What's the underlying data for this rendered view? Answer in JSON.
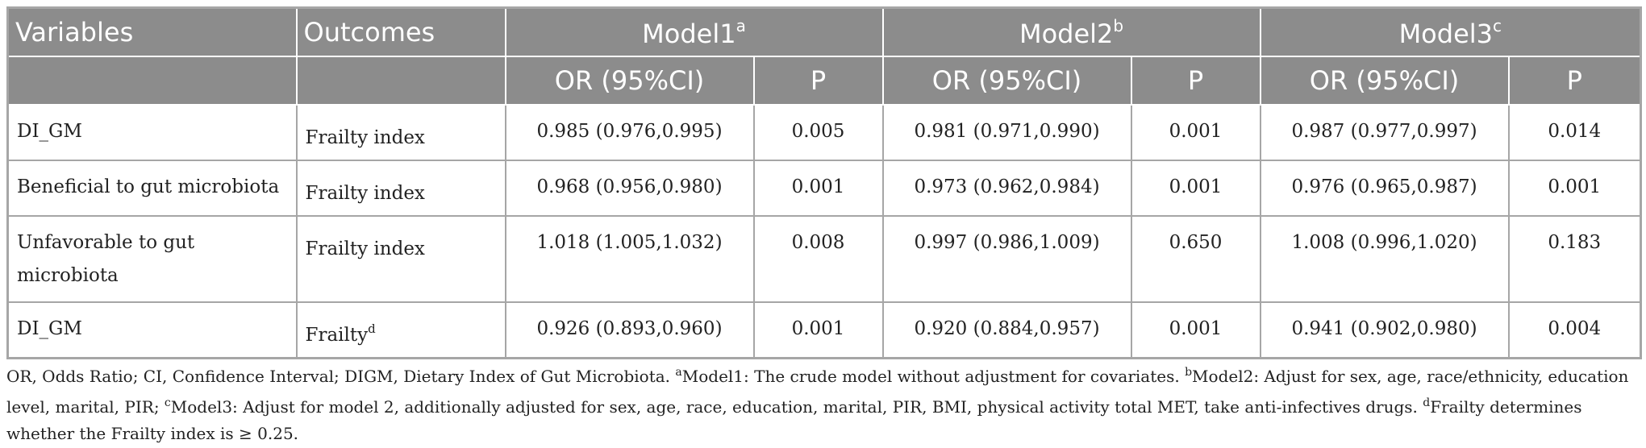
{
  "table": {
    "header_row1": {
      "variables": "Variables",
      "outcomes": "Outcomes",
      "model1": "Model1",
      "model1_sup": "a",
      "model2": "Model2",
      "model2_sup": "b",
      "model3": "Model3",
      "model3_sup": "c"
    },
    "header_row2": {
      "or1": "OR (95%CI)",
      "p1": "P",
      "or2": "OR (95%CI)",
      "p2": "P",
      "or3": "OR (95%CI)",
      "p3": "P"
    },
    "rows": [
      {
        "variable": "DI_GM",
        "outcome": "Frailty index",
        "outcome_sup": "",
        "m1_or": "0.985 (0.976,0.995)",
        "m1_p": "0.005",
        "m2_or": "0.981 (0.971,0.990)",
        "m2_p": "0.001",
        "m3_or": "0.987 (0.977,0.997)",
        "m3_p": "0.014"
      },
      {
        "variable": "Beneficial to gut microbiota",
        "outcome": "Frailty index",
        "outcome_sup": "",
        "m1_or": "0.968 (0.956,0.980)",
        "m1_p": "0.001",
        "m2_or": "0.973 (0.962,0.984)",
        "m2_p": "0.001",
        "m3_or": "0.976 (0.965,0.987)",
        "m3_p": "0.001"
      },
      {
        "variable": "Unfavorable to gut microbiota",
        "outcome": "Frailty index",
        "outcome_sup": "",
        "m1_or": "1.018 (1.005,1.032)",
        "m1_p": "0.008",
        "m2_or": "0.997 (0.986,1.009)",
        "m2_p": "0.650",
        "m3_or": "1.008 (0.996,1.020)",
        "m3_p": "0.183"
      },
      {
        "variable": "DI_GM",
        "outcome": "Frailty",
        "outcome_sup": "d",
        "m1_or": "0.926 (0.893,0.960)",
        "m1_p": "0.001",
        "m2_or": "0.920 (0.884,0.957)",
        "m2_p": "0.001",
        "m3_or": "0.941 (0.902,0.980)",
        "m3_p": "0.004"
      }
    ]
  },
  "footnote": {
    "part1": "OR, Odds Ratio; CI, Confidence Interval; DIGM, Dietary Index of Gut Microbiota. ",
    "sup_a": "a",
    "part2": "Model1: The crude model without adjustment for covariates. ",
    "sup_b": "b",
    "part3": "Model2: Adjust for sex, age, race/ethnicity, education level, marital, PIR; ",
    "sup_c": "c",
    "part4": "Model3: Adjust for model 2, additionally adjusted for sex, age, race, education, marital, PIR, BMI, physical activity total MET, take anti-infectives drugs. ",
    "sup_d": "d",
    "part5": "Frailty determines whether the Frailty index is ≥ 0.25."
  }
}
